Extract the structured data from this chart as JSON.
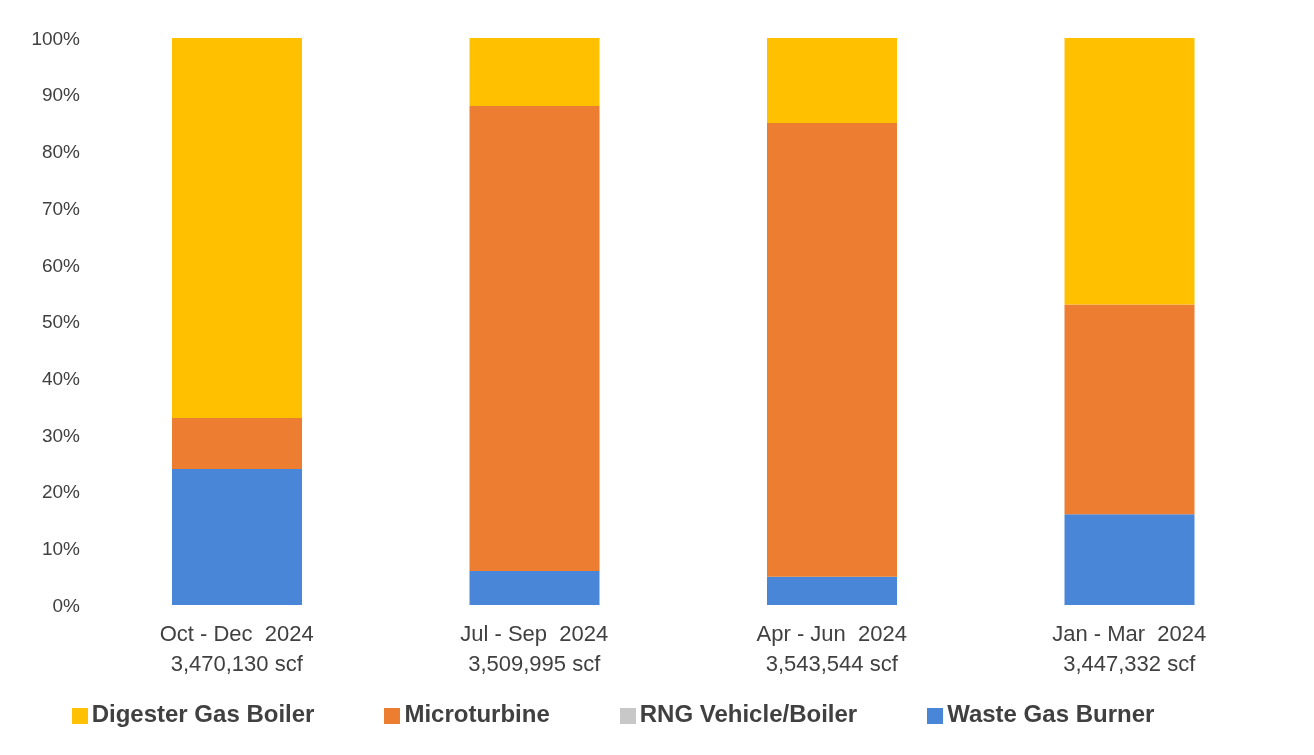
{
  "chart_data": {
    "type": "bar",
    "stacked": true,
    "categories": [
      "Oct - Dec  2024\n3,470,130 scf",
      "Jul - Sep  2024\n3,509,995 scf",
      "Apr - Jun  2024\n3,543,544 scf",
      "Jan - Mar  2024\n3,447,332 scf"
    ],
    "series": [
      {
        "name": "Waste Gas Burner",
        "color": "#4a86d8",
        "values": [
          24,
          6,
          5,
          16
        ]
      },
      {
        "name": "Microturbine",
        "color": "#ed7d31",
        "values": [
          9,
          82,
          80,
          37
        ]
      },
      {
        "name": "RNG Vehicle/Boiler",
        "color": "#c8c8c8",
        "values": [
          0,
          0,
          0,
          0
        ]
      },
      {
        "name": "Digester Gas Boiler",
        "color": "#ffc000",
        "values": [
          67,
          12,
          15,
          47
        ]
      }
    ],
    "ylim": [
      0,
      100
    ],
    "yticks": [
      {
        "value": 0,
        "label": "0%"
      },
      {
        "value": 10,
        "label": "10%"
      },
      {
        "value": 20,
        "label": "20%"
      },
      {
        "value": 30,
        "label": "30%"
      },
      {
        "value": 40,
        "label": "40%"
      },
      {
        "value": 50,
        "label": "50%"
      },
      {
        "value": 60,
        "label": "60%"
      },
      {
        "value": 70,
        "label": "70%"
      },
      {
        "value": 80,
        "label": "80%"
      },
      {
        "value": 90,
        "label": "90%"
      },
      {
        "value": 100,
        "label": "100%"
      }
    ],
    "grid": false,
    "legend": "bottom"
  }
}
